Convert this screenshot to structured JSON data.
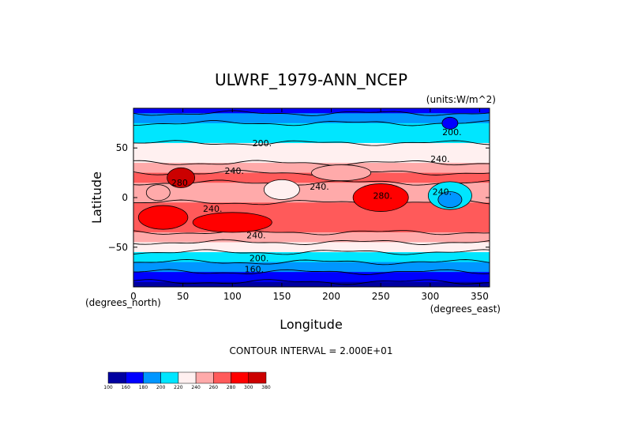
{
  "chart_data": {
    "type": "heatmap",
    "title": "ULWRF_1979-ANN_NCEP",
    "units_label": "(units:W/m^2)",
    "xlabel": "Longitude",
    "ylabel": "Latitude",
    "x_unit_label": "(degrees_east)",
    "y_unit_label": "(degrees_north)",
    "xlim": [
      0,
      360
    ],
    "ylim": [
      -90,
      90
    ],
    "x_ticks": [
      0,
      50,
      100,
      150,
      200,
      250,
      300,
      350
    ],
    "y_ticks": [
      -50,
      0,
      50
    ],
    "footer": "CONTOUR INTERVAL = 2.000E+01",
    "contour_interval": 20,
    "levels": [
      100,
      160,
      180,
      200,
      220,
      240,
      260,
      280,
      300,
      380
    ],
    "level_labels": [
      "100",
      "160",
      "180",
      "200",
      "220",
      "240",
      "260",
      "280",
      "300",
      "380"
    ],
    "colors": [
      "#0000a0",
      "#0000ff",
      "#0096ff",
      "#00e6ff",
      "#fff0f0",
      "#ffaaaa",
      "#ff5a5a",
      "#ff0000",
      "#cc0000"
    ],
    "contour_labels": [
      {
        "text": "200.",
        "lon": 130,
        "lat": 55
      },
      {
        "text": "200.",
        "lon": 322,
        "lat": 66
      },
      {
        "text": "240.",
        "lon": 310,
        "lat": 39
      },
      {
        "text": "240.",
        "lon": 102,
        "lat": 27
      },
      {
        "text": "240.",
        "lon": 188,
        "lat": 11
      },
      {
        "text": "240.",
        "lon": 312,
        "lat": 6
      },
      {
        "text": "240.",
        "lon": 80,
        "lat": -11
      },
      {
        "text": "240.",
        "lon": 124,
        "lat": -38
      },
      {
        "text": "280.",
        "lon": 48,
        "lat": 15
      },
      {
        "text": "280.",
        "lon": 252,
        "lat": 2
      },
      {
        "text": "200.",
        "lon": 127,
        "lat": -61
      },
      {
        "text": "160.",
        "lon": 122,
        "lat": -72
      }
    ],
    "zonal_profile": {
      "lat": [
        90,
        80,
        70,
        60,
        50,
        40,
        30,
        20,
        10,
        0,
        -10,
        -20,
        -30,
        -40,
        -50,
        -60,
        -70,
        -80,
        -90
      ],
      "value": [
        172,
        190,
        205,
        213,
        222,
        233,
        253,
        268,
        250,
        247,
        262,
        268,
        262,
        247,
        228,
        207,
        188,
        165,
        148
      ]
    }
  }
}
